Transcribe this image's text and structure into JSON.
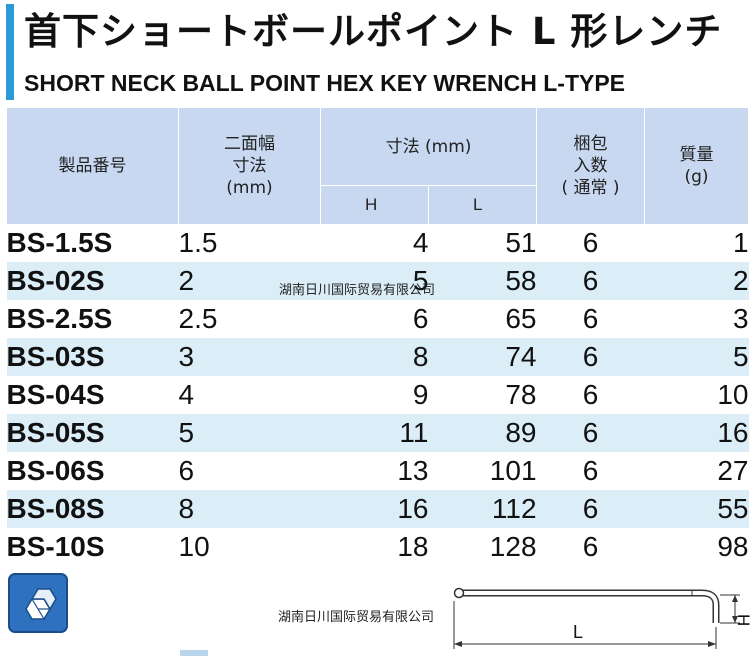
{
  "header": {
    "title_jp": "首下ショートボールポイント L 形レンチ",
    "title_en": "SHORT NECK BALL POINT HEX KEY WRENCH L-TYPE",
    "accent_color": "#2a9bd6"
  },
  "table": {
    "headers": {
      "code": "製品番号",
      "width": [
        "二面幅",
        "寸法",
        "(mm)"
      ],
      "dimensions": "寸法 (mm)",
      "h": "H",
      "l": "L",
      "pack": [
        "梱包",
        "入数",
        "( 通常 )"
      ],
      "mass": [
        "質量",
        "(g)"
      ]
    },
    "rows": [
      {
        "code": "BS-1.5S",
        "width": "1.5",
        "h": "4",
        "l": "51",
        "pack": "6",
        "mass": "1"
      },
      {
        "code": "BS-02S",
        "width": "2",
        "h": "5",
        "l": "58",
        "pack": "6",
        "mass": "2"
      },
      {
        "code": "BS-2.5S",
        "width": "2.5",
        "h": "6",
        "l": "65",
        "pack": "6",
        "mass": "3"
      },
      {
        "code": "BS-03S",
        "width": "3",
        "h": "8",
        "l": "74",
        "pack": "6",
        "mass": "5"
      },
      {
        "code": "BS-04S",
        "width": "4",
        "h": "9",
        "l": "78",
        "pack": "6",
        "mass": "10"
      },
      {
        "code": "BS-05S",
        "width": "5",
        "h": "11",
        "l": "89",
        "pack": "6",
        "mass": "16"
      },
      {
        "code": "BS-06S",
        "width": "6",
        "h": "13",
        "l": "101",
        "pack": "6",
        "mass": "27"
      },
      {
        "code": "BS-08S",
        "width": "8",
        "h": "16",
        "l": "112",
        "pack": "6",
        "mass": "55"
      },
      {
        "code": "BS-10S",
        "width": "10",
        "h": "18",
        "l": "128",
        "pack": "6",
        "mass": "98"
      }
    ]
  },
  "watermarks": [
    "湖南日川国际贸易有限公司",
    "湖南日川国际贸易有限公司"
  ],
  "diagram": {
    "l_label": "L",
    "h_label": "H"
  },
  "icons": {
    "product_icon": "hex-key-icon"
  }
}
